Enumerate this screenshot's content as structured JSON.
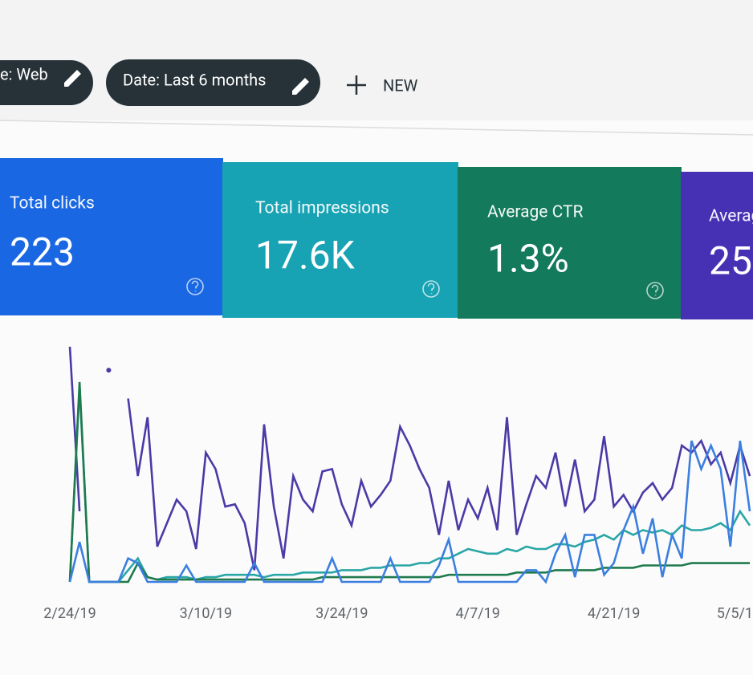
{
  "filters": {
    "chips": [
      "e: Web",
      "Date: Last 6 months"
    ],
    "new_button": "NEW"
  },
  "metrics": [
    {
      "label": "Total clicks",
      "value": "223"
    },
    {
      "label": "Total impressions",
      "value": "17.6K"
    },
    {
      "label": "Average CTR",
      "value": "1.3%"
    },
    {
      "label": "Averag",
      "value": "25"
    }
  ],
  "chart_data": {
    "type": "line",
    "categories": [
      "2/24/19",
      null,
      null,
      null,
      null,
      null,
      null,
      null,
      null,
      null,
      null,
      null,
      null,
      null,
      "3/10/19",
      null,
      null,
      null,
      null,
      null,
      null,
      null,
      null,
      null,
      null,
      null,
      null,
      null,
      "3/24/19",
      null,
      null,
      null,
      null,
      null,
      null,
      null,
      null,
      null,
      null,
      null,
      null,
      null,
      "4/7/19",
      null,
      null,
      null,
      null,
      null,
      null,
      null,
      null,
      null,
      null,
      null,
      null,
      null,
      "4/21/19",
      null,
      null,
      null,
      null,
      null,
      null,
      null,
      null,
      null,
      null,
      null,
      null,
      null,
      "5/5/1"
    ],
    "ylim": [
      0,
      100
    ],
    "series": [
      {
        "color": "#4a3aa6",
        "values": [
          100,
          30,
          null,
          null,
          90,
          null,
          78,
          45,
          70,
          15,
          25,
          35,
          30,
          14,
          55,
          48,
          32,
          33,
          25,
          5,
          67,
          32,
          10,
          45,
          35,
          30,
          47,
          48,
          33,
          24,
          43,
          32,
          37,
          43,
          66,
          58,
          48,
          40,
          20,
          43,
          22,
          35,
          27,
          40,
          22,
          70,
          20,
          33,
          45,
          40,
          55,
          32,
          52,
          30,
          35,
          62,
          32,
          37,
          30,
          38,
          42,
          35,
          40,
          58,
          55,
          60,
          50,
          55,
          42,
          58,
          45
        ]
      },
      {
        "color": "#2aa6a6",
        "values": [
          0,
          83,
          0,
          0,
          0,
          0,
          5,
          10,
          2,
          1,
          2,
          2,
          2,
          1,
          2,
          2,
          3,
          3,
          3,
          3,
          2,
          3,
          3,
          3,
          4,
          4,
          4,
          4,
          5,
          5,
          5,
          6,
          6,
          7,
          7,
          7,
          8,
          8,
          10,
          10,
          12,
          14,
          13,
          12,
          12,
          14,
          13,
          15,
          14,
          14,
          16,
          16,
          15,
          17,
          18,
          20,
          18,
          22,
          20,
          22,
          21,
          22,
          20,
          24,
          22,
          22,
          23,
          25,
          22,
          30,
          24
        ]
      },
      {
        "color": "#1f7a4e",
        "values": [
          0,
          85,
          0,
          0,
          0,
          0,
          0,
          8,
          2,
          1,
          1,
          1,
          1,
          1,
          1,
          1,
          1,
          1,
          1,
          1,
          1,
          1,
          1,
          1,
          1,
          1,
          2,
          2,
          2,
          2,
          2,
          2,
          2,
          2,
          2,
          2,
          2,
          2,
          2,
          3,
          3,
          3,
          3,
          3,
          3,
          3,
          4,
          4,
          4,
          4,
          5,
          5,
          5,
          5,
          5,
          6,
          6,
          6,
          6,
          7,
          7,
          7,
          7,
          7,
          8,
          8,
          8,
          8,
          8,
          8,
          8
        ]
      },
      {
        "color": "#3b7fe0",
        "values": [
          0,
          17,
          0,
          0,
          0,
          0,
          10,
          8,
          0,
          0,
          0,
          0,
          7,
          0,
          0,
          0,
          0,
          0,
          0,
          8,
          0,
          0,
          0,
          0,
          0,
          0,
          0,
          10,
          0,
          0,
          0,
          0,
          0,
          10,
          0,
          0,
          0,
          0,
          7,
          18,
          0,
          0,
          0,
          0,
          0,
          0,
          0,
          5,
          5,
          0,
          12,
          20,
          2,
          20,
          20,
          3,
          8,
          22,
          32,
          12,
          27,
          2,
          20,
          10,
          60,
          48,
          58,
          48,
          15,
          60,
          30
        ]
      }
    ]
  }
}
